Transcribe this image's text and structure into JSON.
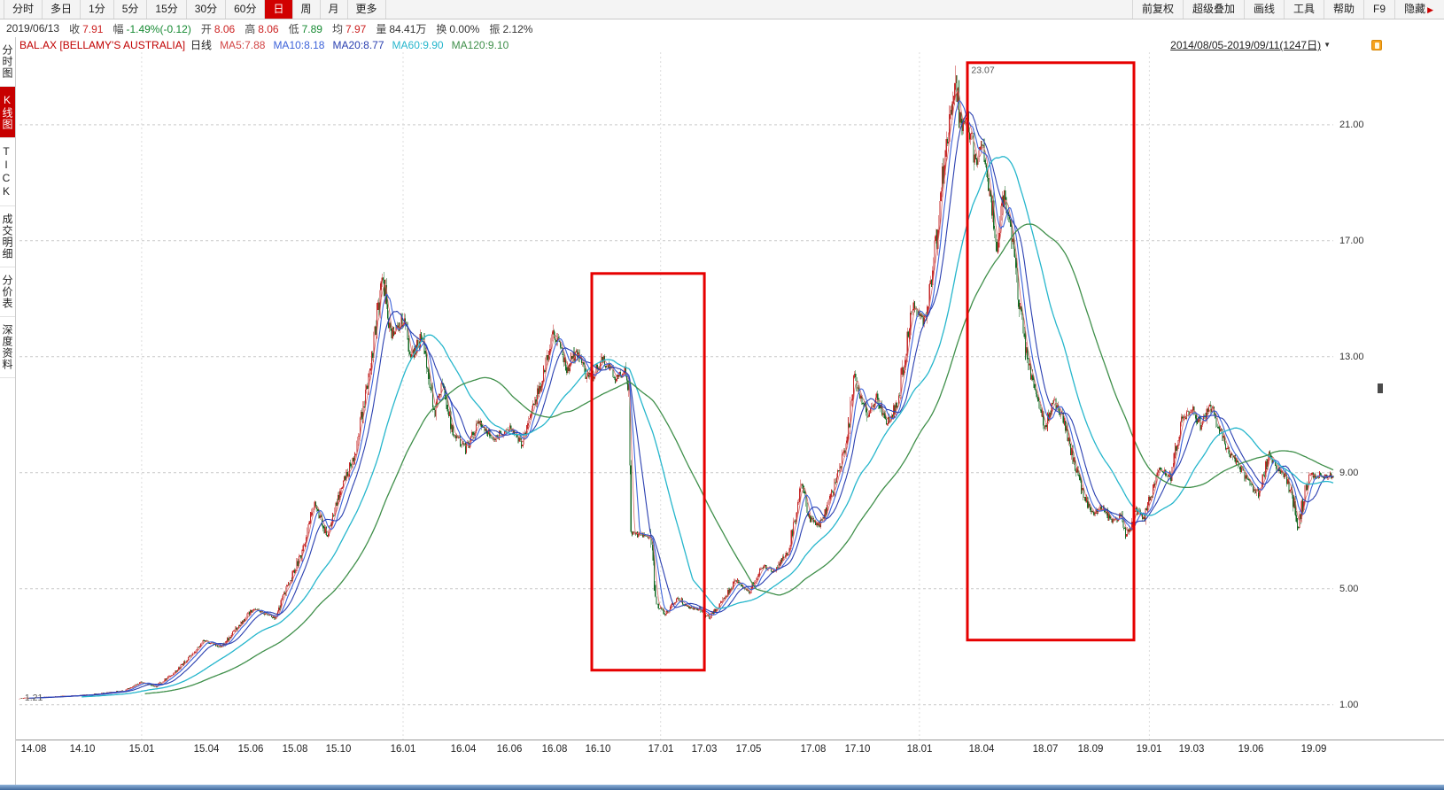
{
  "toolbar": {
    "left_tabs": [
      {
        "name": "minute",
        "label": "分时"
      },
      {
        "name": "multi-day",
        "label": "多日"
      },
      {
        "name": "1min",
        "label": "1分"
      },
      {
        "name": "5min",
        "label": "5分"
      },
      {
        "name": "15min",
        "label": "15分"
      },
      {
        "name": "30min",
        "label": "30分"
      },
      {
        "name": "60min",
        "label": "60分"
      },
      {
        "name": "daily",
        "label": "日",
        "selected": true
      },
      {
        "name": "weekly",
        "label": "周"
      },
      {
        "name": "monthly",
        "label": "月"
      },
      {
        "name": "more",
        "label": "更多"
      }
    ],
    "right_items": [
      {
        "name": "forward-adjust",
        "label": "前复权"
      },
      {
        "name": "super-overlay",
        "label": "超级叠加"
      },
      {
        "name": "draw-line",
        "label": "画线"
      },
      {
        "name": "tools",
        "label": "工具"
      },
      {
        "name": "help",
        "label": "帮助"
      },
      {
        "name": "f9",
        "label": "F9"
      },
      {
        "name": "hide",
        "label": "隐藏",
        "arrow": true
      }
    ]
  },
  "info_bar": {
    "date": "2019/06/13",
    "fields": [
      {
        "name": "close",
        "label": "收",
        "value": "7.91",
        "color": "#cc2222"
      },
      {
        "name": "change",
        "label": "幅",
        "value": "-1.49%(-0.12)",
        "color": "#168a32"
      },
      {
        "name": "open",
        "label": "开",
        "value": "8.06",
        "color": "#cc2222"
      },
      {
        "name": "high",
        "label": "高",
        "value": "8.06",
        "color": "#cc2222"
      },
      {
        "name": "low",
        "label": "低",
        "value": "7.89",
        "color": "#168a32"
      },
      {
        "name": "avg",
        "label": "均",
        "value": "7.97",
        "color": "#cc2222"
      },
      {
        "name": "volume",
        "label": "量",
        "value": "84.41万",
        "color": "#333333"
      },
      {
        "name": "turnover",
        "label": "换",
        "value": "0.00%",
        "color": "#333333"
      },
      {
        "name": "amplitude",
        "label": "振",
        "value": "2.12%",
        "color": "#333333"
      }
    ]
  },
  "legend_bar": {
    "symbol": "BAL.AX [BELLAMY'S AUSTRALIA]",
    "period": "日线",
    "ma_items": [
      {
        "name": "ma5",
        "label": "MA5:7.88",
        "color": "#d24545"
      },
      {
        "name": "ma10",
        "label": "MA10:8.18",
        "color": "#3c62d9"
      },
      {
        "name": "ma20",
        "label": "MA20:8.77",
        "color": "#2a3fb0"
      },
      {
        "name": "ma60",
        "label": "MA60:9.90",
        "color": "#26b6cc"
      },
      {
        "name": "ma120",
        "label": "MA120:9.10",
        "color": "#3f8f4a"
      }
    ],
    "range": "2014/08/05-2019/09/11(1247日)"
  },
  "sidebar": {
    "items": [
      {
        "name": "time-chart",
        "label": "分时图"
      },
      {
        "name": "kline-chart",
        "label": "K线图",
        "selected": true
      },
      {
        "name": "tick",
        "label": "TICK"
      },
      {
        "name": "trade-detail",
        "label": "成交明细"
      },
      {
        "name": "price-table",
        "label": "分价表"
      },
      {
        "name": "depth-info",
        "label": "深度资料"
      }
    ]
  },
  "chart_data": {
    "type": "candlestick",
    "symbol": "BAL.AX",
    "period": "daily",
    "date_range": "2014/08/05-2019/09/11",
    "days": 1247,
    "ylim": [
      -0.2,
      23.5
    ],
    "y_ticks": [
      {
        "value": 21,
        "label": "21.00"
      },
      {
        "value": 17,
        "label": "17.00"
      },
      {
        "value": 13,
        "label": "13.00"
      },
      {
        "value": 9,
        "label": "9.00"
      },
      {
        "value": 5,
        "label": "5.00"
      },
      {
        "value": 1,
        "label": "1.00"
      }
    ],
    "x_ticks": [
      {
        "label": "14.08",
        "t": 0.011,
        "grid": false
      },
      {
        "label": "14.10",
        "t": 0.048,
        "grid": false
      },
      {
        "label": "15.01",
        "t": 0.093,
        "grid": true
      },
      {
        "label": "15.04",
        "t": 0.142,
        "grid": false
      },
      {
        "label": "15.06",
        "t": 0.176,
        "grid": false
      },
      {
        "label": "15.08",
        "t": 0.21,
        "grid": false
      },
      {
        "label": "15.10",
        "t": 0.243,
        "grid": false
      },
      {
        "label": "16.01",
        "t": 0.292,
        "grid": true
      },
      {
        "label": "16.04",
        "t": 0.338,
        "grid": false
      },
      {
        "label": "16.06",
        "t": 0.373,
        "grid": false
      },
      {
        "label": "16.08",
        "t": 0.407,
        "grid": false
      },
      {
        "label": "16.10",
        "t": 0.44,
        "grid": false
      },
      {
        "label": "17.01",
        "t": 0.488,
        "grid": true
      },
      {
        "label": "17.03",
        "t": 0.521,
        "grid": false
      },
      {
        "label": "17.05",
        "t": 0.555,
        "grid": false
      },
      {
        "label": "17.08",
        "t": 0.604,
        "grid": false
      },
      {
        "label": "17.10",
        "t": 0.638,
        "grid": false
      },
      {
        "label": "18.01",
        "t": 0.685,
        "grid": true
      },
      {
        "label": "18.04",
        "t": 0.732,
        "grid": false
      },
      {
        "label": "18.07",
        "t": 0.781,
        "grid": false
      },
      {
        "label": "18.09",
        "t": 0.815,
        "grid": false
      },
      {
        "label": "19.01",
        "t": 0.86,
        "grid": true
      },
      {
        "label": "19.03",
        "t": 0.892,
        "grid": false
      },
      {
        "label": "19.06",
        "t": 0.937,
        "grid": false
      },
      {
        "label": "19.09",
        "t": 0.985,
        "grid": false
      }
    ],
    "ma_lines": [
      {
        "name": "ma5",
        "window": 5,
        "color": "#d86a6a",
        "width": 0.8
      },
      {
        "name": "ma10",
        "window": 10,
        "color": "#3c62d9",
        "width": 1.1
      },
      {
        "name": "ma20",
        "window": 20,
        "color": "#2a3fb0",
        "width": 1.1
      },
      {
        "name": "ma60",
        "window": 60,
        "color": "#26b6cc",
        "width": 1.3
      },
      {
        "name": "ma120",
        "window": 120,
        "color": "#3f8f4a",
        "width": 1.3
      }
    ],
    "colors": {
      "up": "#c52b2b",
      "down": "#166b26",
      "grid": "#c9c9c9",
      "vgrid": "#dcdcdc"
    },
    "price_path_anchors": [
      [
        0,
        1.22
      ],
      [
        30,
        1.27
      ],
      [
        61,
        1.33
      ],
      [
        99,
        1.48
      ],
      [
        116,
        1.78
      ],
      [
        129,
        1.62
      ],
      [
        150,
        2.2
      ],
      [
        175,
        3.2
      ],
      [
        192,
        3.0
      ],
      [
        221,
        4.3
      ],
      [
        242,
        4.0
      ],
      [
        267,
        6.2
      ],
      [
        280,
        7.9
      ],
      [
        292,
        6.8
      ],
      [
        305,
        8.5
      ],
      [
        318,
        9.6
      ],
      [
        330,
        12.0
      ],
      [
        345,
        15.8
      ],
      [
        352,
        13.8
      ],
      [
        364,
        14.3
      ],
      [
        372,
        13.0
      ],
      [
        383,
        13.8
      ],
      [
        393,
        11.0
      ],
      [
        402,
        12.1
      ],
      [
        410,
        10.5
      ],
      [
        423,
        9.8
      ],
      [
        435,
        10.8
      ],
      [
        448,
        10.2
      ],
      [
        465,
        10.5
      ],
      [
        477,
        10.0
      ],
      [
        490,
        11.5
      ],
      [
        507,
        13.9
      ],
      [
        519,
        12.5
      ],
      [
        528,
        13.2
      ],
      [
        540,
        12.2
      ],
      [
        553,
        12.9
      ],
      [
        566,
        12.3
      ],
      [
        574,
        12.5
      ],
      [
        578,
        11.8
      ],
      [
        580,
        6.9
      ],
      [
        599,
        6.8
      ],
      [
        603,
        4.5
      ],
      [
        613,
        4.1
      ],
      [
        624,
        4.7
      ],
      [
        633,
        4.4
      ],
      [
        645,
        4.3
      ],
      [
        654,
        4.0
      ],
      [
        666,
        4.5
      ],
      [
        679,
        5.3
      ],
      [
        692,
        4.9
      ],
      [
        704,
        5.8
      ],
      [
        717,
        5.6
      ],
      [
        729,
        6.3
      ],
      [
        742,
        8.6
      ],
      [
        750,
        7.4
      ],
      [
        759,
        7.2
      ],
      [
        771,
        8.3
      ],
      [
        784,
        10.0
      ],
      [
        792,
        12.2
      ],
      [
        805,
        11.0
      ],
      [
        813,
        11.6
      ],
      [
        822,
        10.6
      ],
      [
        834,
        11.5
      ],
      [
        847,
        14.8
      ],
      [
        860,
        14.2
      ],
      [
        868,
        16.5
      ],
      [
        876,
        19.5
      ],
      [
        887,
        22.6
      ],
      [
        893,
        21.0
      ],
      [
        899,
        21.4
      ],
      [
        906,
        19.8
      ],
      [
        914,
        20.2
      ],
      [
        921,
        18.5
      ],
      [
        927,
        16.8
      ],
      [
        934,
        18.8
      ],
      [
        939,
        17.5
      ],
      [
        948,
        15.0
      ],
      [
        956,
        13.0
      ],
      [
        965,
        11.5
      ],
      [
        973,
        10.6
      ],
      [
        981,
        11.6
      ],
      [
        990,
        10.8
      ],
      [
        1000,
        9.4
      ],
      [
        1008,
        8.3
      ],
      [
        1017,
        7.6
      ],
      [
        1028,
        7.8
      ],
      [
        1036,
        7.3
      ],
      [
        1044,
        7.5
      ],
      [
        1050,
        6.8
      ],
      [
        1059,
        7.7
      ],
      [
        1066,
        7.4
      ],
      [
        1071,
        8.0
      ],
      [
        1082,
        9.2
      ],
      [
        1091,
        8.8
      ],
      [
        1103,
        10.9
      ],
      [
        1112,
        11.2
      ],
      [
        1120,
        10.6
      ],
      [
        1129,
        11.3
      ],
      [
        1137,
        10.7
      ],
      [
        1145,
        9.9
      ],
      [
        1154,
        9.3
      ],
      [
        1162,
        8.9
      ],
      [
        1168,
        8.6
      ],
      [
        1175,
        8.3
      ],
      [
        1185,
        9.6
      ],
      [
        1191,
        9.2
      ],
      [
        1200,
        8.9
      ],
      [
        1207,
        8.2
      ],
      [
        1213,
        7.1
      ],
      [
        1218,
        8.2
      ],
      [
        1224,
        8.9
      ],
      [
        1246,
        8.9
      ]
    ],
    "annotations": {
      "labels": [
        {
          "text": "1.21",
          "t": 0.004,
          "p": 1.27
        },
        {
          "text": "23.07",
          "t": 0.7245,
          "p": 22.9
        }
      ],
      "red_boxes": [
        {
          "t1": 0.4356,
          "t2": 0.5213,
          "p_top": 15.87,
          "p_bottom": 2.19
        },
        {
          "t1": 0.7215,
          "t2": 0.8483,
          "p_top": 23.14,
          "p_bottom": 3.23
        }
      ],
      "box_color": "#e60000"
    }
  }
}
